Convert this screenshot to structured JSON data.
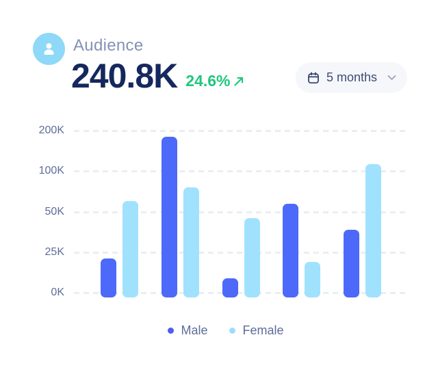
{
  "header": {
    "title": "Audience",
    "total": "240.8K",
    "change": "24.6%",
    "trend_direction": "up",
    "period_selector": {
      "label": "5 months"
    }
  },
  "colors": {
    "male_bar": "#4c69fa",
    "female_bar": "#a0e2fd",
    "male_dot": "#4b5ef1",
    "female_dot": "#9fdcf9",
    "green": "#1fc77d",
    "navy": "#15285e",
    "title_gray": "#8492b6",
    "axis_label": "#5e6d99",
    "gridline": "#e9eef2",
    "pill_bg": "#f5f7fa",
    "avatar_bg": "#8ed8f8"
  },
  "chart_data": {
    "type": "bar",
    "title": "Audience",
    "unit": "K",
    "x_axis_labels": "none (5 unlabeled month groups)",
    "series": [
      {
        "name": "Male",
        "color": "#4c69fa",
        "values_k": [
          21,
          185,
          9,
          60,
          39
        ]
      },
      {
        "name": "Female",
        "color": "#a0e2fd",
        "values_k": [
          63,
          80,
          46,
          19,
          118
        ]
      }
    ],
    "y_ticks_top_to_bottom": [
      "200K",
      "100K",
      "50K",
      "25K",
      "0K"
    ],
    "y_tick_values_k": [
      200,
      100,
      50,
      25,
      0
    ],
    "y_scale": "non-linear: 0,25,50,100,200 evenly spaced",
    "grid": "horizontal dashed lines",
    "legend": [
      "Male",
      "Female"
    ],
    "legend_position": "bottom center"
  }
}
